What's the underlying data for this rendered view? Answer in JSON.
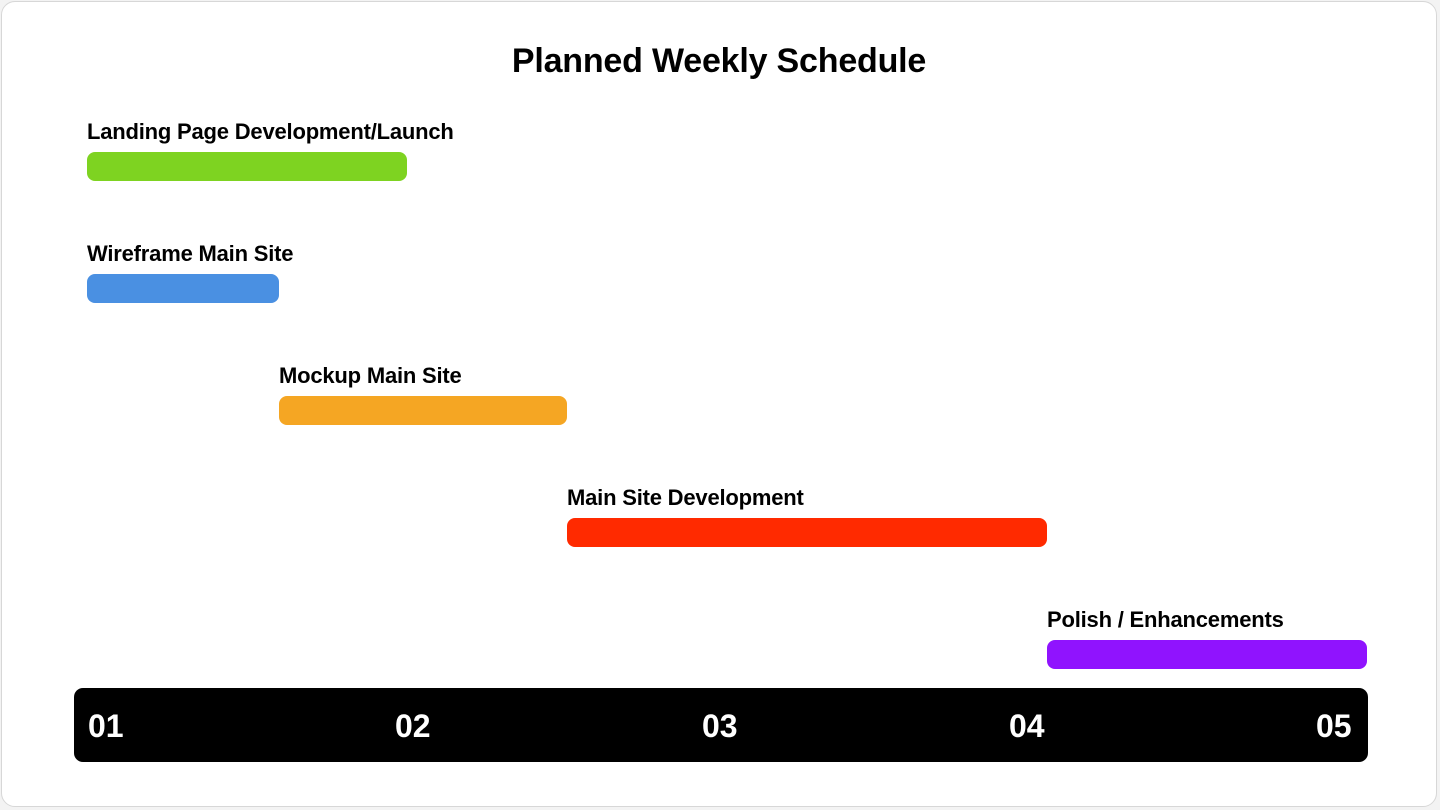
{
  "chart_data": {
    "type": "bar",
    "title": "Planned Weekly Schedule",
    "xlabel": "",
    "ylabel": "",
    "x_ticks": [
      "01",
      "02",
      "03",
      "04",
      "05"
    ],
    "xlim": [
      1,
      5
    ],
    "tasks": [
      {
        "name": "Landing Page Development/Launch",
        "start": 1.0,
        "end": 2.0,
        "color": "#7ed321"
      },
      {
        "name": "Wireframe Main Site",
        "start": 1.0,
        "end": 1.6,
        "color": "#4a90e2"
      },
      {
        "name": "Mockup Main Site",
        "start": 1.6,
        "end": 2.5,
        "color": "#f5a623"
      },
      {
        "name": "Main Site Development",
        "start": 2.5,
        "end": 4.0,
        "color": "#ff2a00"
      },
      {
        "name": "Polish / Enhancements",
        "start": 4.0,
        "end": 5.0,
        "color": "#9013fe"
      }
    ]
  }
}
